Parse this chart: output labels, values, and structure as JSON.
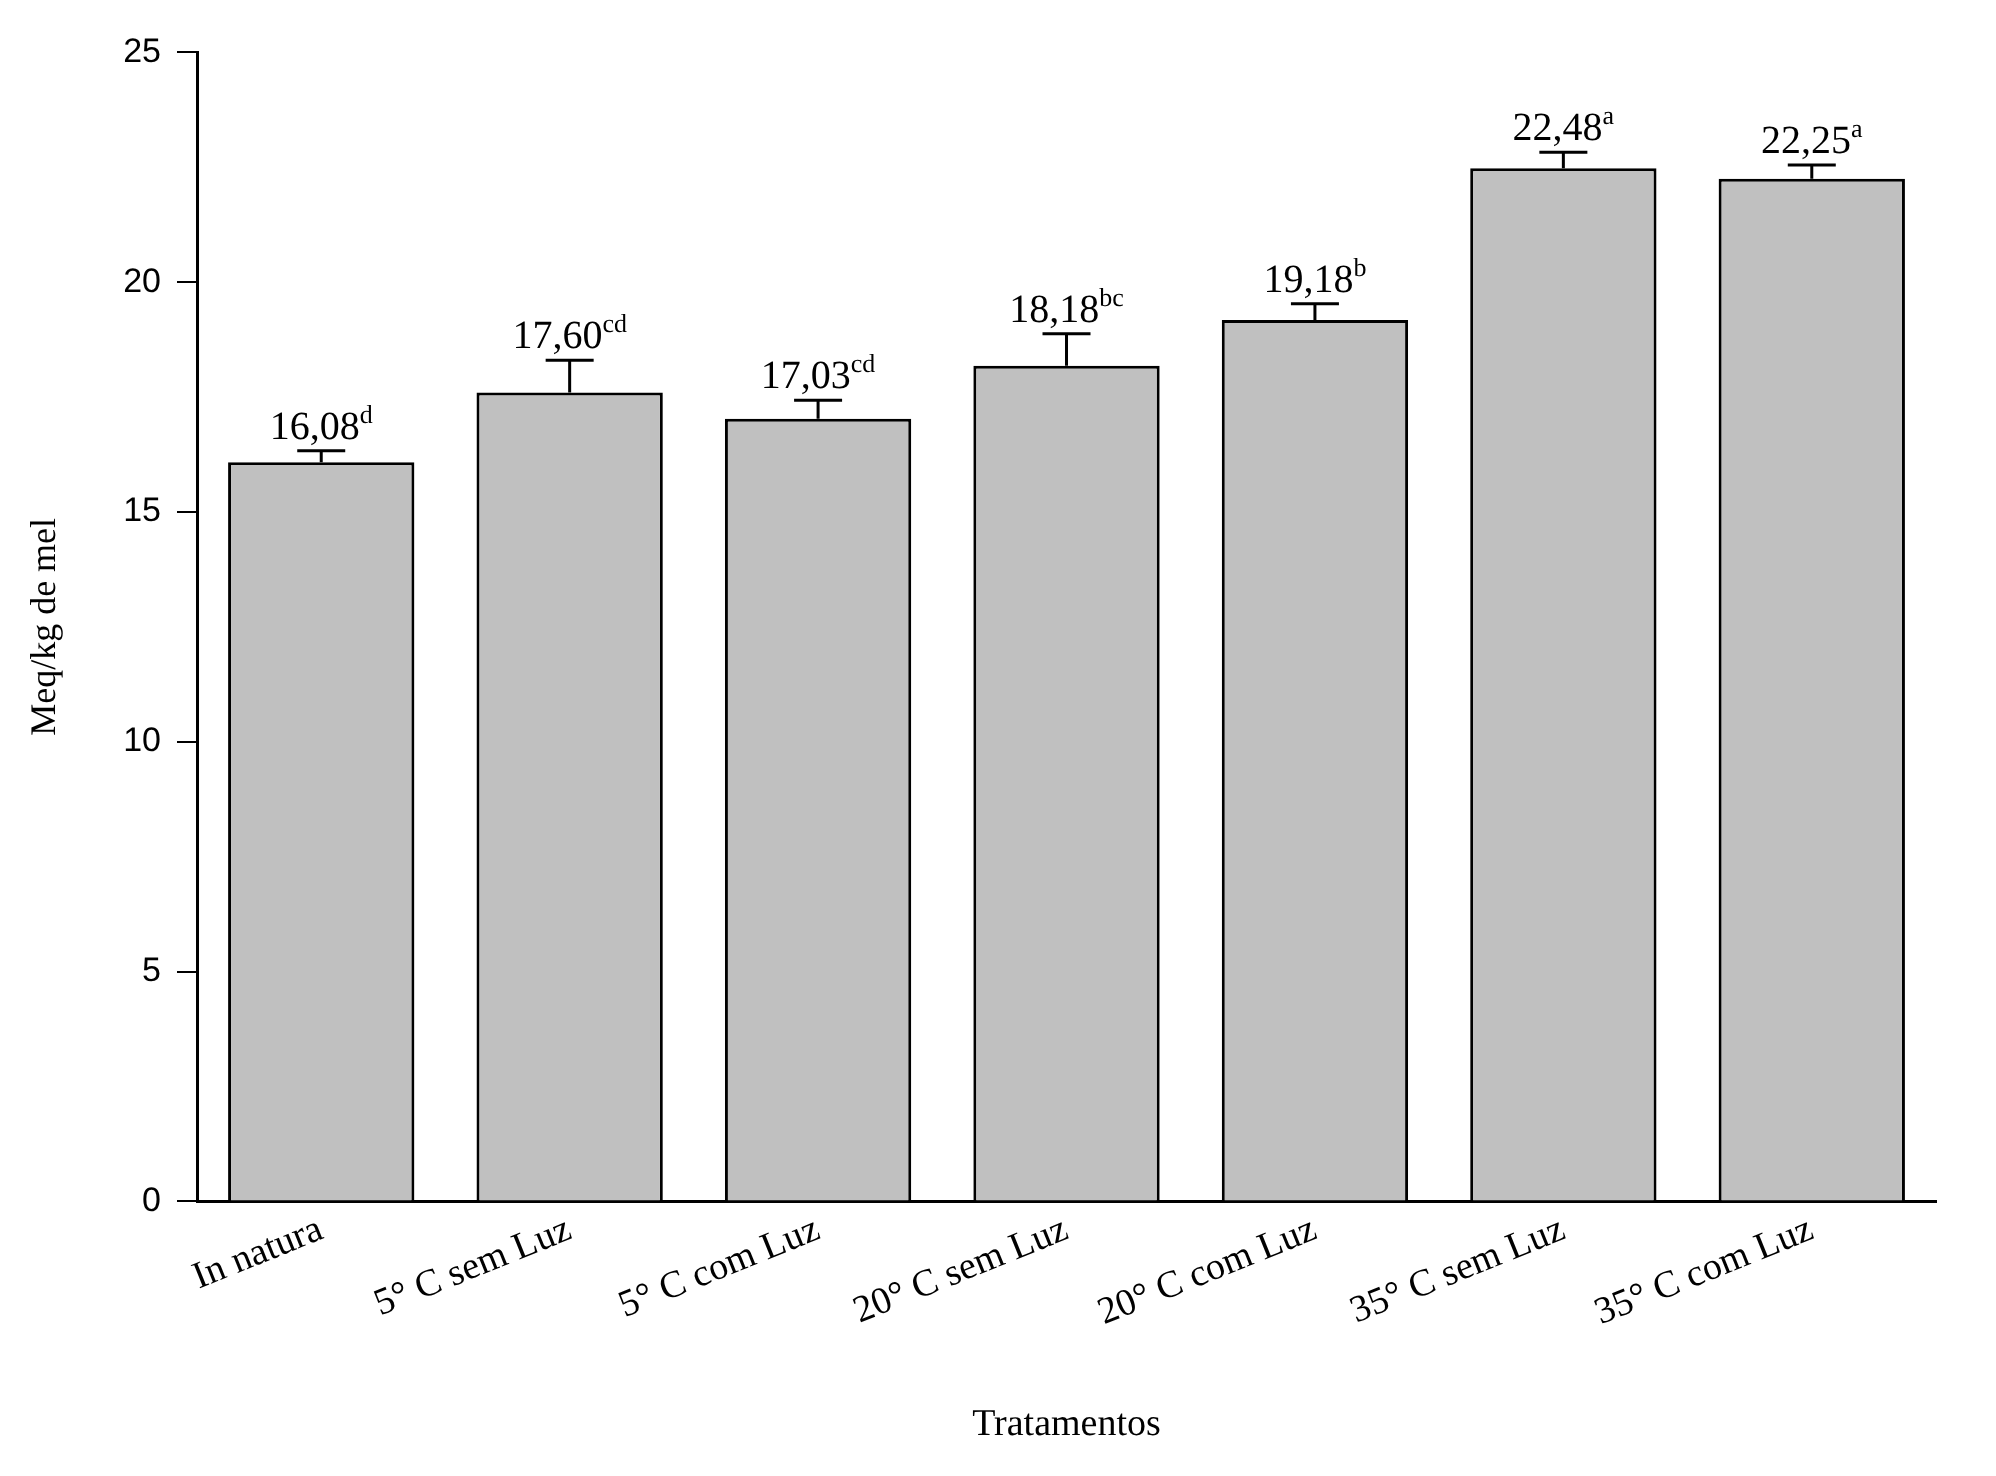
{
  "chart_data": {
    "type": "bar",
    "xlabel": "Tratamentos",
    "ylabel": "Meq/kg de mel",
    "categories": [
      "In natura",
      "5° C sem Luz",
      "5° C com Luz",
      "20° C sem Luz",
      "20° C com Luz",
      "35° C sem Luz",
      "35° C com Luz"
    ],
    "values": [
      16.08,
      17.6,
      17.03,
      18.18,
      19.18,
      22.48,
      22.25
    ],
    "errors": [
      [
        16.08,
        16.33
      ],
      [
        17.6,
        18.3
      ],
      [
        17.03,
        17.43
      ],
      [
        18.18,
        18.88
      ],
      [
        19.18,
        19.53
      ],
      [
        22.48,
        22.83
      ],
      [
        22.25,
        22.55
      ]
    ],
    "value_labels": [
      "16,08$^{d}$",
      "17,60$^{cd}$",
      "17,03$^{cd}$",
      "18,18$^{bc}$",
      "19,18$^{b}$",
      "22,48$^{a}$",
      "22,25$^{a}$"
    ],
    "color": "#c0c0c0",
    "ylim": [
      0,
      25
    ],
    "yticks": [
      0,
      5,
      10,
      15,
      20,
      25
    ]
  }
}
